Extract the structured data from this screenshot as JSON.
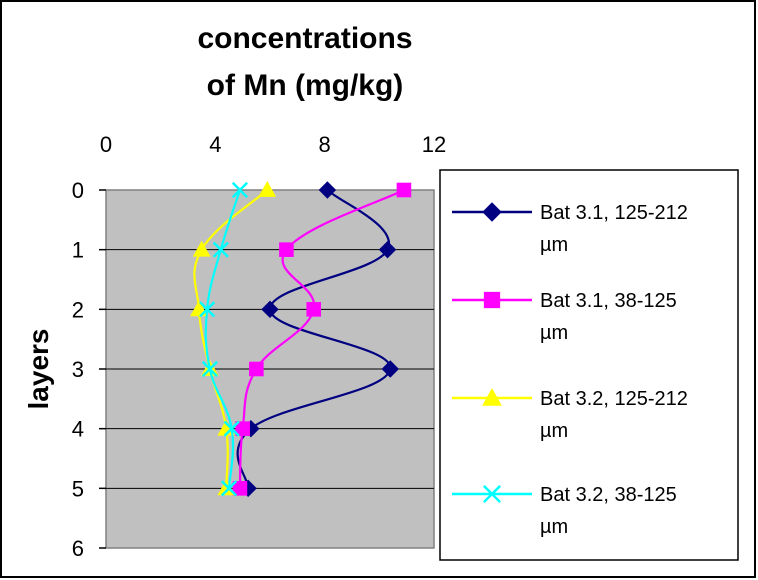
{
  "chart_data": {
    "type": "line",
    "title_lines": [
      "concentrations",
      "of Mn (mg/kg)"
    ],
    "ylabel": "layers",
    "x_axis": {
      "position": "top",
      "range": [
        0,
        12
      ],
      "ticks": [
        "0",
        "4",
        "8",
        "12"
      ]
    },
    "y_axis": {
      "reversed": true,
      "range": [
        0,
        6
      ],
      "ticks": [
        "0",
        "1",
        "2",
        "3",
        "4",
        "5",
        "6"
      ]
    },
    "grid": "horizontal",
    "plot_background": "#c0c0c0",
    "legend_position": "right",
    "series": [
      {
        "name_lines": [
          "Bat 3.1, 125-212",
          "µm"
        ],
        "color": "#000080",
        "marker": "diamond",
        "points": [
          [
            8.1,
            0
          ],
          [
            10.3,
            1
          ],
          [
            6.0,
            2
          ],
          [
            10.4,
            3
          ],
          [
            5.3,
            4
          ],
          [
            5.2,
            5
          ]
        ]
      },
      {
        "name_lines": [
          "Bat 3.1, 38-125",
          "µm"
        ],
        "color": "#ff00ff",
        "marker": "square",
        "points": [
          [
            10.9,
            0
          ],
          [
            6.6,
            1
          ],
          [
            7.6,
            2
          ],
          [
            5.5,
            3
          ],
          [
            5.0,
            4
          ],
          [
            4.9,
            5
          ]
        ]
      },
      {
        "name_lines": [
          "Bat 3.2, 125-212",
          "µm"
        ],
        "color": "#ffff00",
        "marker": "triangle",
        "points": [
          [
            5.9,
            0
          ],
          [
            3.5,
            1
          ],
          [
            3.4,
            2
          ],
          [
            3.8,
            3
          ],
          [
            4.4,
            4
          ],
          [
            4.4,
            5
          ]
        ]
      },
      {
        "name_lines": [
          "Bat 3.2, 38-125",
          "µm"
        ],
        "color": "#00ffff",
        "marker": "x",
        "points": [
          [
            4.9,
            0
          ],
          [
            4.2,
            1
          ],
          [
            3.7,
            2
          ],
          [
            3.8,
            3
          ],
          [
            4.6,
            4
          ],
          [
            4.5,
            5
          ]
        ]
      }
    ]
  }
}
